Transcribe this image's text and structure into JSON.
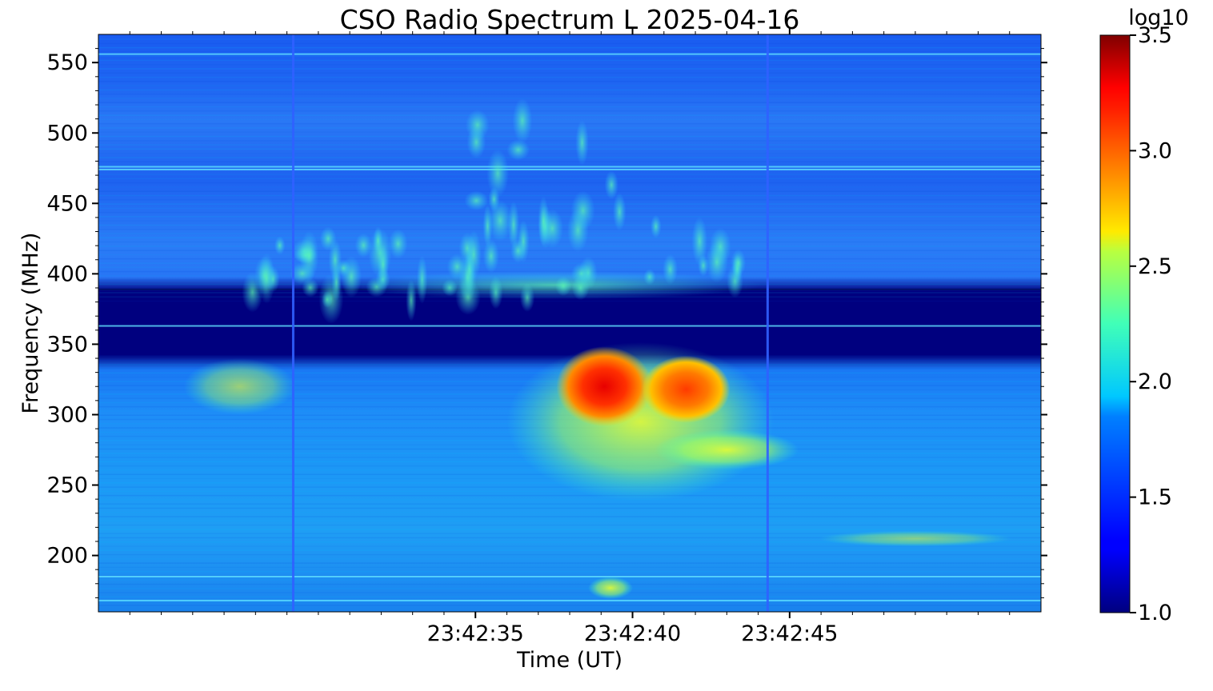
{
  "chart_data": {
    "type": "heatmap",
    "title": "CSO Radio Spectrum L 2025-04-16",
    "xlabel": "Time (UT)",
    "ylabel": "Frequency (MHz)",
    "x_range_seconds": [
      23.0,
      53.0
    ],
    "x_ticks": [
      {
        "label": "23:42:35",
        "value": 35
      },
      {
        "label": "23:42:40",
        "value": 40
      },
      {
        "label": "23:42:45",
        "value": 45
      }
    ],
    "ylim": [
      160,
      570
    ],
    "y_ticks": [
      200,
      250,
      300,
      350,
      400,
      450,
      500,
      550
    ],
    "colorbar": {
      "label": "log10",
      "range": [
        1.0,
        3.5
      ],
      "ticks": [
        "1.0",
        "1.5",
        "2.0",
        "2.5",
        "3.0",
        "3.5"
      ],
      "colormap": "jet"
    },
    "features": [
      {
        "kind": "low-intensity band",
        "freq_min": 343,
        "freq_max": 378,
        "log10": 1.0
      },
      {
        "kind": "burst",
        "t": 38.9,
        "freq": 320,
        "log10": 3.3
      },
      {
        "kind": "burst",
        "t": 41.5,
        "freq": 318,
        "log10": 3.0
      },
      {
        "kind": "diffuse emission",
        "t_min": 36.0,
        "t_max": 44.5,
        "freq_min": 250,
        "freq_max": 340,
        "log10": 2.4
      },
      {
        "kind": "fine structures",
        "t_min": 27.5,
        "t_max": 44.0,
        "freq_min": 380,
        "freq_max": 510,
        "log10": 2.2
      },
      {
        "kind": "vertical line",
        "t": 29.2
      },
      {
        "kind": "vertical line",
        "t": 44.3
      }
    ]
  }
}
